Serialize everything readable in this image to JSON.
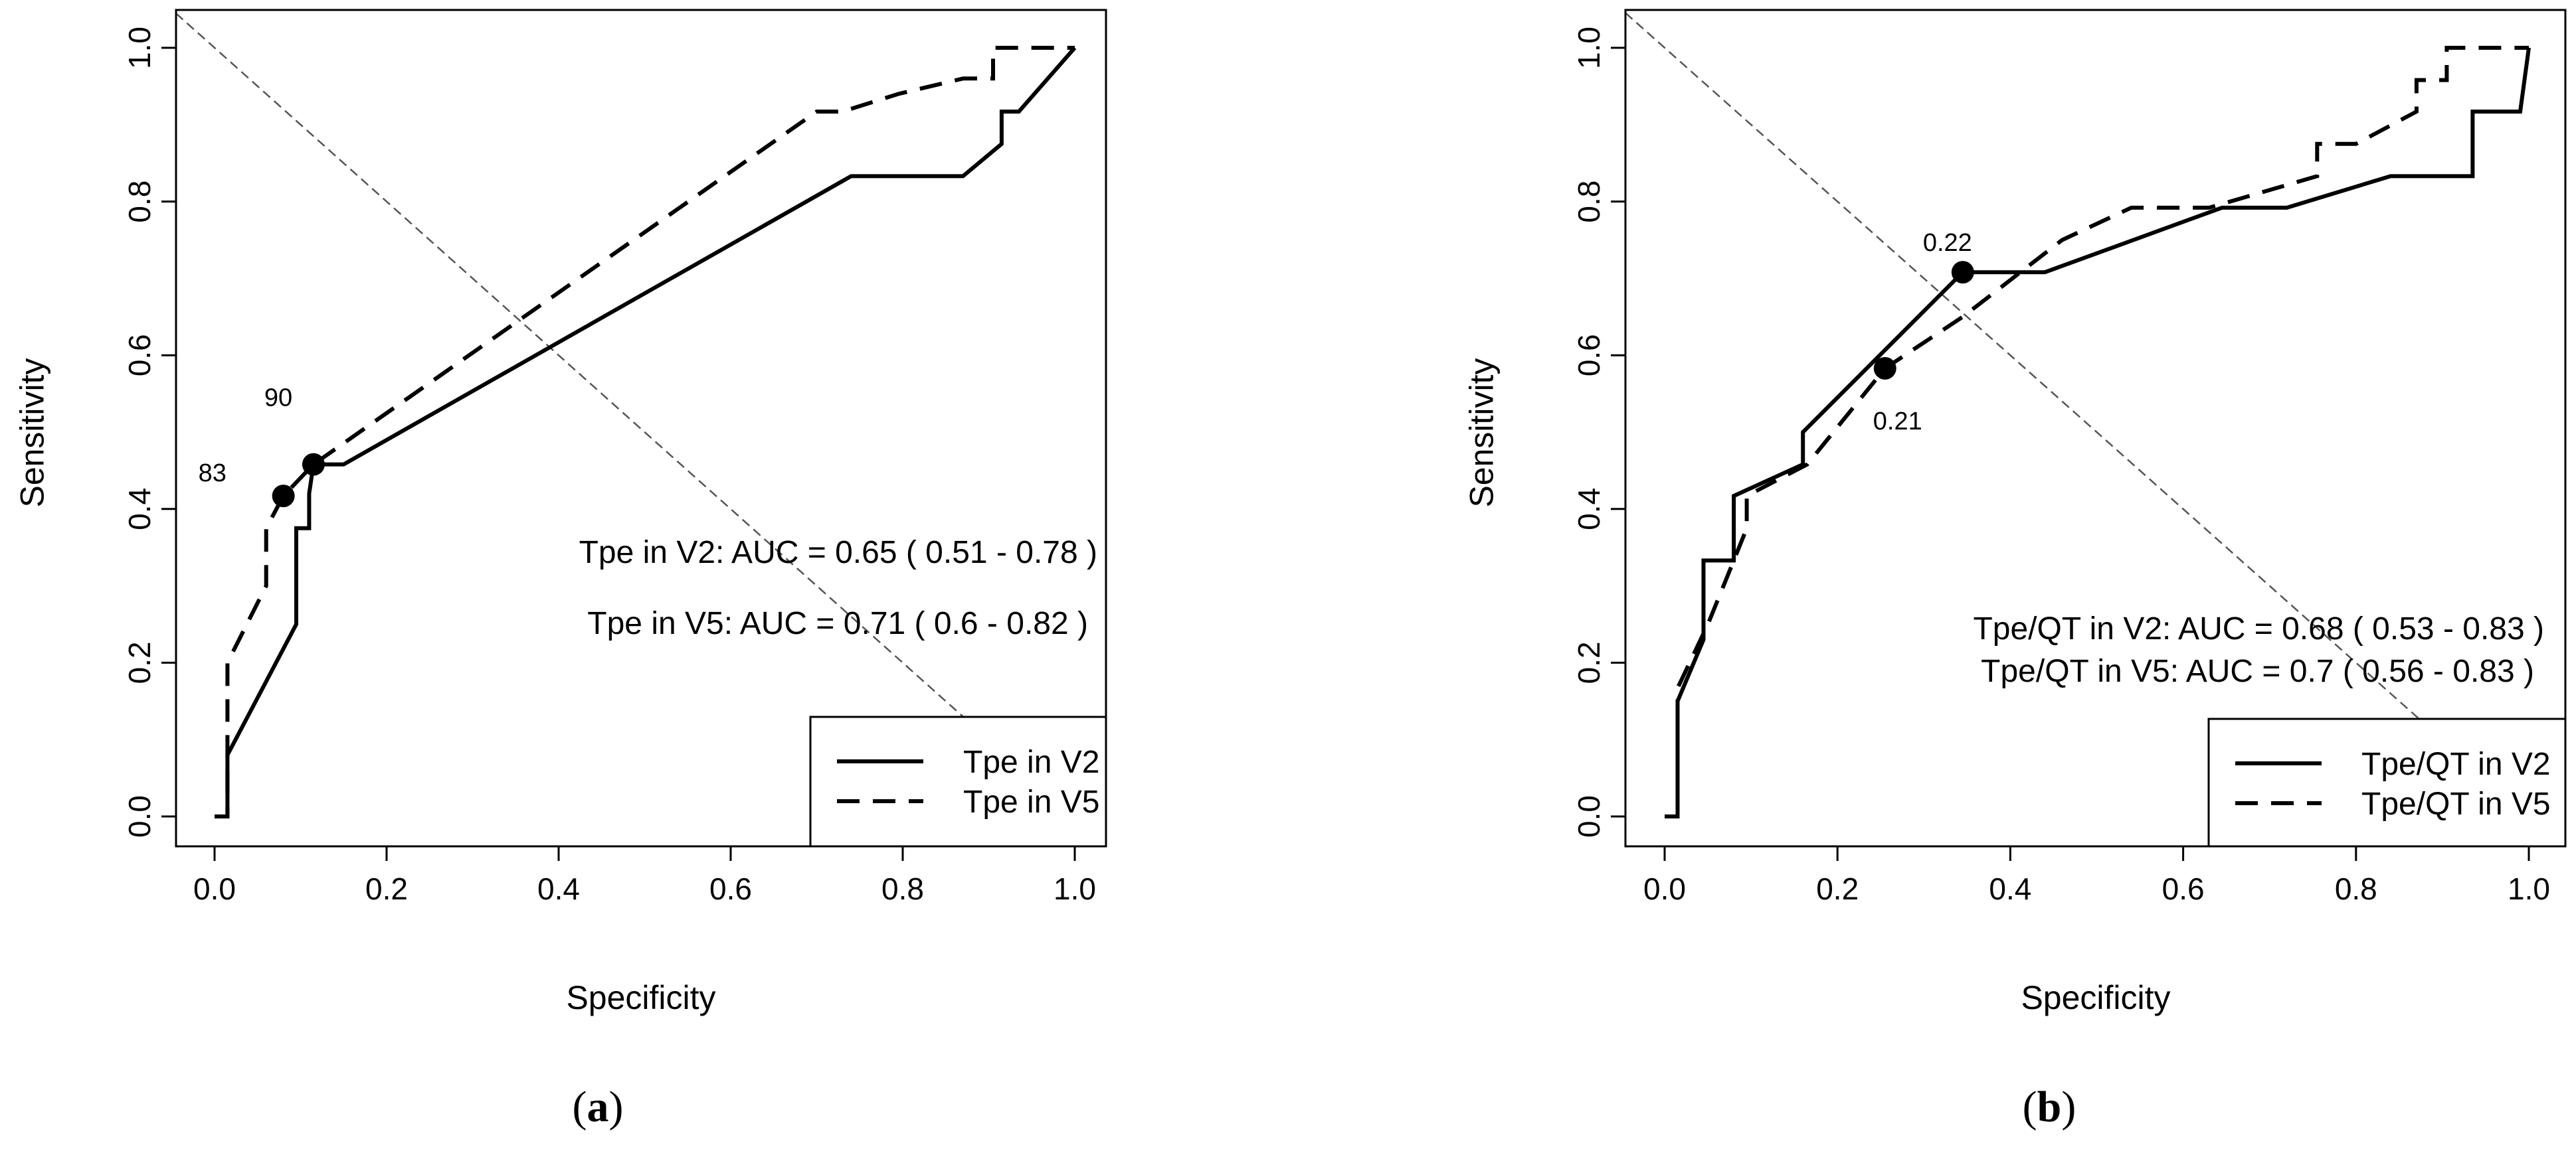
{
  "chart_data": [
    {
      "type": "line",
      "panel": "a",
      "xlabel": "Specificity",
      "ylabel": "Sensitivity",
      "xlim": [
        0,
        1
      ],
      "ylim": [
        0,
        1
      ],
      "xticks": [
        "0.0",
        "0.2",
        "0.4",
        "0.6",
        "0.8",
        "1.0"
      ],
      "yticks": [
        "0.0",
        "0.2",
        "0.4",
        "0.6",
        "0.8",
        "1.0"
      ],
      "diagonal": true,
      "legend_position": "bottom-right",
      "series": [
        {
          "name": "Tpe in V2",
          "style": "solid",
          "x": [
            0.0,
            0.015,
            0.015,
            0.095,
            0.095,
            0.11,
            0.11,
            0.115,
            0.15,
            0.74,
            0.87,
            0.915,
            0.915,
            0.935,
            1.0
          ],
          "y": [
            0.0,
            0.0,
            0.08,
            0.25,
            0.375,
            0.375,
            0.42,
            0.458,
            0.458,
            0.833,
            0.833,
            0.875,
            0.917,
            0.917,
            1.0
          ],
          "marker": {
            "x": 0.115,
            "y": 0.458,
            "label": "90"
          }
        },
        {
          "name": "Tpe in V5",
          "style": "dashed",
          "x": [
            0.0,
            0.015,
            0.015,
            0.06,
            0.06,
            0.08,
            0.115,
            0.7,
            0.73,
            0.795,
            0.87,
            0.905,
            0.905,
            1.0
          ],
          "y": [
            0.0,
            0.0,
            0.2,
            0.3,
            0.375,
            0.417,
            0.458,
            0.917,
            0.917,
            0.94,
            0.96,
            0.96,
            1.0,
            1.0
          ],
          "marker": {
            "x": 0.08,
            "y": 0.417,
            "label": "83"
          }
        }
      ],
      "annotations": [
        "Tpe in V2: AUC = 0.65 ( 0.51 - 0.78 )",
        "Tpe in V5: AUC = 0.71 ( 0.6 - 0.82 )"
      ],
      "subcaption": {
        "open": "(",
        "letter": "a",
        "close": ")"
      }
    },
    {
      "type": "line",
      "panel": "b",
      "xlabel": "Specificity",
      "ylabel": "Sensitivity",
      "xlim": [
        0,
        1
      ],
      "ylim": [
        0,
        1
      ],
      "xticks": [
        "0.0",
        "0.2",
        "0.4",
        "0.6",
        "0.8",
        "1.0"
      ],
      "yticks": [
        "0.0",
        "0.2",
        "0.4",
        "0.6",
        "0.8",
        "1.0"
      ],
      "diagonal": true,
      "legend_position": "bottom-right",
      "series": [
        {
          "name": "Tpe/QT in V2",
          "style": "solid",
          "x": [
            0.0,
            0.015,
            0.015,
            0.045,
            0.045,
            0.08,
            0.08,
            0.16,
            0.16,
            0.345,
            0.44,
            0.645,
            0.72,
            0.84,
            0.935,
            0.935,
            0.99,
            1.0
          ],
          "y": [
            0.0,
            0.0,
            0.15,
            0.23,
            0.333,
            0.333,
            0.417,
            0.458,
            0.5,
            0.708,
            0.708,
            0.792,
            0.792,
            0.833,
            0.833,
            0.917,
            0.917,
            1.0
          ],
          "marker": {
            "x": 0.345,
            "y": 0.708,
            "label": "0.22"
          }
        },
        {
          "name": "Tpe/QT in V5",
          "style": "dashed",
          "x": [
            0.0,
            0.015,
            0.015,
            0.05,
            0.08,
            0.095,
            0.095,
            0.165,
            0.255,
            0.345,
            0.46,
            0.54,
            0.63,
            0.755,
            0.755,
            0.8,
            0.87,
            0.87,
            0.905,
            0.905,
            1.0
          ],
          "y": [
            0.0,
            0.0,
            0.167,
            0.25,
            0.333,
            0.375,
            0.417,
            0.458,
            0.583,
            0.65,
            0.75,
            0.792,
            0.792,
            0.833,
            0.875,
            0.875,
            0.917,
            0.958,
            0.958,
            1.0,
            1.0
          ],
          "marker": {
            "x": 0.255,
            "y": 0.583,
            "label": "0.21"
          }
        }
      ],
      "annotations": [
        "Tpe/QT in V2: AUC = 0.68 ( 0.53 - 0.83 )",
        "Tpe/QT in V5: AUC = 0.7 ( 0.56 - 0.83 )"
      ],
      "subcaption": {
        "open": "(",
        "letter": "b",
        "close": ")"
      }
    }
  ]
}
